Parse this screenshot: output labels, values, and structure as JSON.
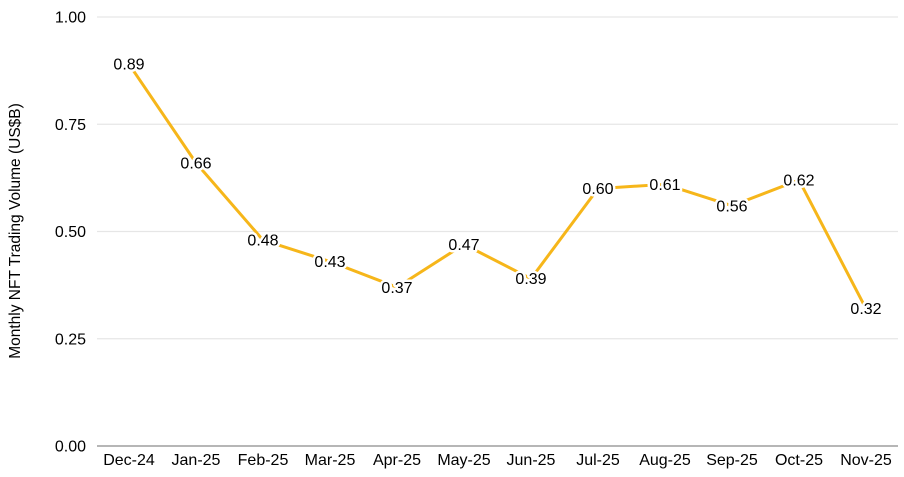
{
  "chart_data": {
    "type": "line",
    "title": "",
    "categories": [
      "Dec-24",
      "Jan-25",
      "Feb-25",
      "Mar-25",
      "Apr-25",
      "May-25",
      "Jun-25",
      "Jul-25",
      "Aug-25",
      "Sep-25",
      "Oct-25",
      "Nov-25"
    ],
    "values": [
      0.89,
      0.66,
      0.48,
      0.43,
      0.37,
      0.47,
      0.39,
      0.6,
      0.61,
      0.56,
      0.62,
      0.32
    ],
    "point_labels": [
      "0.89",
      "0.66",
      "0.48",
      "0.43",
      "0.37",
      "0.47",
      "0.39",
      "0.60",
      "0.61",
      "0.56",
      "0.62",
      "0.32"
    ],
    "xlabel": "",
    "ylabel": "Monthly NFT Trading Volume (US$B)",
    "ylim": [
      0.0,
      1.0
    ],
    "yticks": [
      0.0,
      0.25,
      0.5,
      0.75,
      1.0
    ],
    "ytick_labels": [
      "0.00",
      "0.25",
      "0.50",
      "0.75",
      "1.00"
    ],
    "grid": "horizontal",
    "legend_position": "none",
    "colors": {
      "line": "#F6B61A",
      "label_text": "#000000",
      "label_halo": "#FFFFFF",
      "tick_text": "#000000",
      "gridline": "#E6E6E6",
      "axis_line": "#9E9E9E",
      "background": "#FFFFFF"
    }
  }
}
